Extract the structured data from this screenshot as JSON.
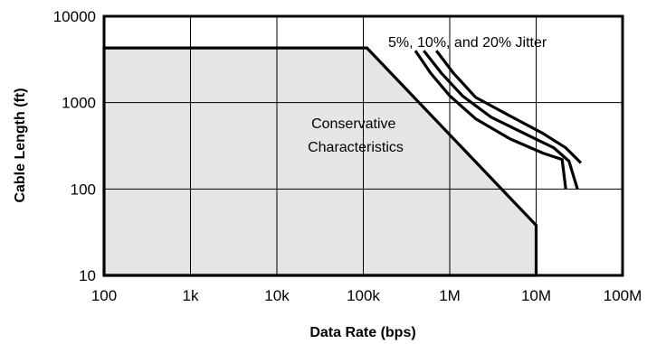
{
  "chart_data": {
    "type": "line",
    "x_scale": "log",
    "y_scale": "log",
    "xlabel": "Data  Rate (bps)",
    "ylabel": "Cable Length (ft)",
    "xlim": [
      100,
      100000000
    ],
    "ylim": [
      10,
      10000
    ],
    "grid": true,
    "x_ticks": [
      {
        "value": 100,
        "label": "100"
      },
      {
        "value": 1000,
        "label": "1k"
      },
      {
        "value": 10000,
        "label": "10k"
      },
      {
        "value": 100000,
        "label": "100k"
      },
      {
        "value": 1000000,
        "label": "1M"
      },
      {
        "value": 10000000,
        "label": "10M"
      },
      {
        "value": 100000000,
        "label": "100M"
      }
    ],
    "y_ticks": [
      {
        "value": 10,
        "label": "10"
      },
      {
        "value": 100,
        "label": "100"
      },
      {
        "value": 1000,
        "label": "1000"
      },
      {
        "value": 10000,
        "label": "10000"
      }
    ],
    "region": {
      "label_lines": [
        "Conservative",
        "Characteristics"
      ],
      "fill_color": "#e5e5e5",
      "points": [
        [
          100,
          10
        ],
        [
          100,
          4300
        ],
        [
          110000,
          4300
        ],
        [
          10000000,
          38
        ],
        [
          10000000,
          10
        ]
      ]
    },
    "annotation": "5%, 10%, and 20% Jitter",
    "series": [
      {
        "points": [
          [
            400000,
            4000
          ],
          [
            600000,
            2200
          ],
          [
            1000000,
            1200
          ],
          [
            2000000,
            650
          ],
          [
            5000000,
            380
          ],
          [
            12000000,
            260
          ],
          [
            20000000,
            220
          ],
          [
            22000000,
            100
          ]
        ]
      },
      {
        "points": [
          [
            500000,
            4000
          ],
          [
            800000,
            2200
          ],
          [
            1400000,
            1200
          ],
          [
            3000000,
            680
          ],
          [
            8000000,
            420
          ],
          [
            16000000,
            300
          ],
          [
            24000000,
            210
          ],
          [
            30000000,
            100
          ]
        ]
      },
      {
        "points": [
          [
            700000,
            4000
          ],
          [
            1100000,
            2200
          ],
          [
            2000000,
            1150
          ],
          [
            5000000,
            700
          ],
          [
            12000000,
            440
          ],
          [
            22000000,
            300
          ],
          [
            33000000,
            200
          ]
        ]
      }
    ]
  }
}
